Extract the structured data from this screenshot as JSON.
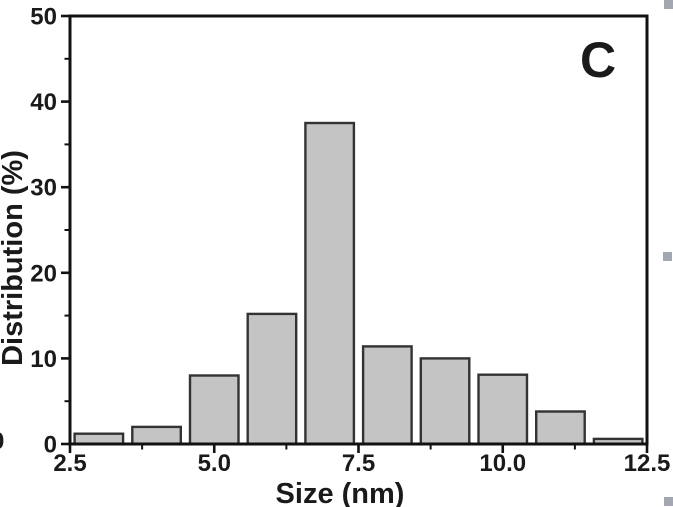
{
  "panel_label": "C",
  "chart_data": {
    "type": "bar",
    "title": "",
    "xlabel": "Size (nm)",
    "ylabel": "Distribution (%)",
    "x": [
      3,
      4,
      5,
      6,
      7,
      8,
      9,
      10,
      11,
      12
    ],
    "values": [
      1.2,
      2.0,
      8.0,
      15.2,
      37.5,
      11.4,
      10.0,
      8.1,
      3.8,
      0.6
    ],
    "xlim": [
      2.5,
      12.5
    ],
    "ylim": [
      0,
      50
    ],
    "x_ticks": [
      2.5,
      5.0,
      7.5,
      10.0,
      12.5
    ],
    "x_tick_labels": [
      "2.5",
      "5.0",
      "7.5",
      "10.0",
      "12.5"
    ],
    "x_minor_ticks": [
      3.75,
      6.25,
      8.75,
      11.25
    ],
    "y_ticks": [
      0,
      10,
      20,
      30,
      40,
      50
    ],
    "y_tick_labels": [
      "0",
      "10",
      "20",
      "30",
      "40",
      "50"
    ],
    "y_minor_ticks": [
      5,
      15,
      25,
      35,
      45
    ],
    "bar_width_x_units": 0.84,
    "grid": false,
    "legend": null,
    "colors": {
      "bar_fill": "#c4c4c4",
      "bar_border": "#333333",
      "axis": "#111111",
      "text": "#1a1a1a",
      "background": "#ffffff"
    }
  },
  "edge_fragment_label": "0",
  "selection_handles": {
    "color": "#a2a7b2",
    "positions": [
      "top-right",
      "middle-right",
      "bottom-right"
    ]
  }
}
